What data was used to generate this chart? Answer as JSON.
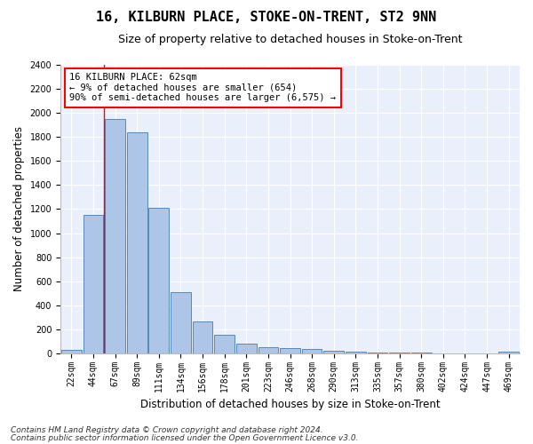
{
  "title": "16, KILBURN PLACE, STOKE-ON-TRENT, ST2 9NN",
  "subtitle": "Size of property relative to detached houses in Stoke-on-Trent",
  "xlabel": "Distribution of detached houses by size in Stoke-on-Trent",
  "ylabel": "Number of detached properties",
  "categories": [
    "22sqm",
    "44sqm",
    "67sqm",
    "89sqm",
    "111sqm",
    "134sqm",
    "156sqm",
    "178sqm",
    "201sqm",
    "223sqm",
    "246sqm",
    "268sqm",
    "290sqm",
    "313sqm",
    "335sqm",
    "357sqm",
    "380sqm",
    "402sqm",
    "424sqm",
    "447sqm",
    "469sqm"
  ],
  "values": [
    30,
    1150,
    1950,
    1840,
    1210,
    510,
    265,
    155,
    80,
    50,
    45,
    42,
    22,
    18,
    10,
    8,
    7,
    5,
    4,
    3,
    18
  ],
  "bar_color": "#adc6e8",
  "bar_edge_color": "#5588bb",
  "red_line_x": 1.5,
  "annotation_line1": "16 KILBURN PLACE: 62sqm",
  "annotation_line2": "← 9% of detached houses are smaller (654)",
  "annotation_line3": "90% of semi-detached houses are larger (6,575) →",
  "annotation_box_color": "white",
  "annotation_box_edge_color": "red",
  "ylim": [
    0,
    2400
  ],
  "yticks": [
    0,
    200,
    400,
    600,
    800,
    1000,
    1200,
    1400,
    1600,
    1800,
    2000,
    2200,
    2400
  ],
  "footer1": "Contains HM Land Registry data © Crown copyright and database right 2024.",
  "footer2": "Contains public sector information licensed under the Open Government Licence v3.0.",
  "background_color": "#ffffff",
  "plot_bg_color": "#eaf0fb",
  "grid_color": "#ffffff",
  "title_fontsize": 11,
  "subtitle_fontsize": 9,
  "axis_label_fontsize": 8.5,
  "tick_fontsize": 7,
  "annotation_fontsize": 7.5,
  "footer_fontsize": 6.5
}
